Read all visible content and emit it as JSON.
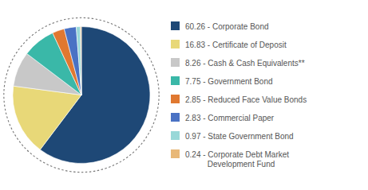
{
  "chart_data": {
    "type": "pie",
    "categories": [
      "60.26 - Corporate Bond",
      "16.83 - Certificate of Deposit",
      "8.26 - Cash & Cash Equivalents**",
      "7.75 - Government Bond",
      "2.85 - Reduced Face Value Bonds",
      "2.83 - Commercial Paper",
      "0.97 - State Government Bond",
      "0.24 - Corporate Debt Market\n          Development Fund"
    ],
    "values": [
      60.26,
      16.83,
      8.26,
      7.75,
      2.85,
      2.83,
      0.97,
      0.24
    ],
    "colors": [
      "#1e4876",
      "#e8d878",
      "#c8c8c8",
      "#3ab8a8",
      "#e07830",
      "#4a72c4",
      "#98d8d8",
      "#e8b878"
    ],
    "legend": "right"
  }
}
